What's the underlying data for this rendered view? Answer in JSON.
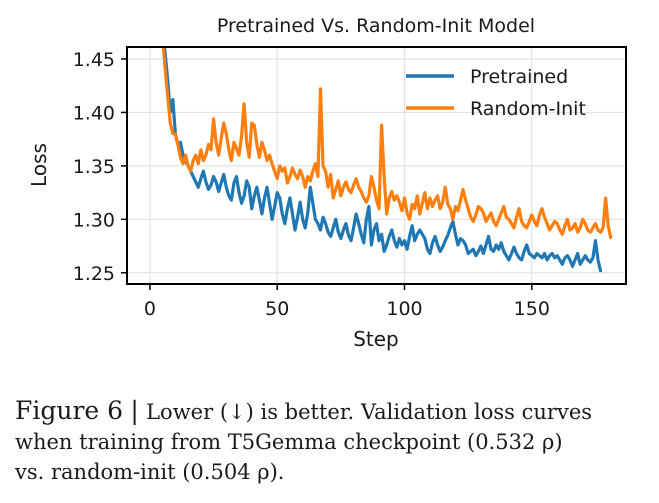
{
  "chart_data": {
    "type": "line",
    "title": "Pretrained Vs. Random-Init Model",
    "xlabel": "Step",
    "ylabel": "Loss",
    "xlim": [
      -9,
      187
    ],
    "ylim": [
      1.2395,
      1.4612
    ],
    "xticks": [
      0,
      50,
      100,
      150
    ],
    "xtick_labels": [
      "0",
      "50",
      "100",
      "150"
    ],
    "yticks": [
      1.25,
      1.3,
      1.35,
      1.4,
      1.45
    ],
    "ytick_labels": [
      "1.25",
      "1.30",
      "1.35",
      "1.40",
      "1.45"
    ],
    "grid": true,
    "legend_position": "top-right",
    "x_start": 5,
    "series": [
      {
        "name": "Pretrained",
        "color": "#1f77b4",
        "values": [
          1.475,
          1.455,
          1.43,
          1.4,
          1.412,
          1.38,
          1.37,
          1.372,
          1.36,
          1.355,
          1.35,
          1.345,
          1.34,
          1.335,
          1.33,
          1.338,
          1.345,
          1.335,
          1.328,
          1.332,
          1.34,
          1.335,
          1.326,
          1.334,
          1.342,
          1.33,
          1.322,
          1.318,
          1.334,
          1.34,
          1.325,
          1.315,
          1.322,
          1.336,
          1.33,
          1.31,
          1.322,
          1.33,
          1.318,
          1.305,
          1.32,
          1.33,
          1.315,
          1.3,
          1.312,
          1.325,
          1.32,
          1.305,
          1.296,
          1.31,
          1.32,
          1.305,
          1.29,
          1.302,
          1.316,
          1.3,
          1.292,
          1.306,
          1.33,
          1.315,
          1.3,
          1.296,
          1.29,
          1.302,
          1.296,
          1.288,
          1.284,
          1.292,
          1.3,
          1.288,
          1.282,
          1.29,
          1.296,
          1.285,
          1.28,
          1.292,
          1.305,
          1.296,
          1.286,
          1.278,
          1.3,
          1.312,
          1.276,
          1.29,
          1.296,
          1.28,
          1.286,
          1.27,
          1.276,
          1.284,
          1.29,
          1.28,
          1.274,
          1.282,
          1.276,
          1.28,
          1.272,
          1.284,
          1.294,
          1.28,
          1.286,
          1.29,
          1.286,
          1.282,
          1.272,
          1.268,
          1.278,
          1.284,
          1.276,
          1.27,
          1.274,
          1.28,
          1.285,
          1.292,
          1.298,
          1.286,
          1.276,
          1.282,
          1.28,
          1.276,
          1.268,
          1.27,
          1.272,
          1.266,
          1.27,
          1.275,
          1.268,
          1.276,
          1.284,
          1.272,
          1.27,
          1.276,
          1.272,
          1.278,
          1.27,
          1.266,
          1.262,
          1.268,
          1.274,
          1.268,
          1.264,
          1.262,
          1.27,
          1.276,
          1.268,
          1.266,
          1.264,
          1.268,
          1.266,
          1.264,
          1.268,
          1.262,
          1.266,
          1.268,
          1.264,
          1.266,
          1.262,
          1.258,
          1.264,
          1.266,
          1.262,
          1.256,
          1.262,
          1.268,
          1.258,
          1.262,
          1.266,
          1.262,
          1.26,
          1.264,
          1.28,
          1.262,
          1.252
        ]
      },
      {
        "name": "Random-Init",
        "color": "#ff7f0e",
        "values": [
          1.47,
          1.44,
          1.415,
          1.39,
          1.38,
          1.38,
          1.37,
          1.358,
          1.352,
          1.36,
          1.35,
          1.345,
          1.355,
          1.36,
          1.352,
          1.365,
          1.355,
          1.36,
          1.37,
          1.365,
          1.394,
          1.372,
          1.36,
          1.376,
          1.39,
          1.38,
          1.365,
          1.355,
          1.372,
          1.366,
          1.36,
          1.378,
          1.408,
          1.372,
          1.358,
          1.39,
          1.388,
          1.37,
          1.358,
          1.372,
          1.365,
          1.355,
          1.36,
          1.352,
          1.345,
          1.338,
          1.35,
          1.345,
          1.348,
          1.334,
          1.34,
          1.348,
          1.342,
          1.338,
          1.346,
          1.34,
          1.33,
          1.34,
          1.336,
          1.345,
          1.352,
          1.34,
          1.422,
          1.35,
          1.345,
          1.33,
          1.342,
          1.32,
          1.328,
          1.336,
          1.322,
          1.33,
          1.335,
          1.328,
          1.325,
          1.332,
          1.338,
          1.33,
          1.326,
          1.32,
          1.316,
          1.322,
          1.34,
          1.33,
          1.318,
          1.31,
          1.388,
          1.34,
          1.305,
          1.32,
          1.326,
          1.318,
          1.322,
          1.316,
          1.308,
          1.32,
          1.306,
          1.3,
          1.314,
          1.31,
          1.322,
          1.305,
          1.315,
          1.325,
          1.31,
          1.32,
          1.312,
          1.318,
          1.322,
          1.31,
          1.316,
          1.33,
          1.314,
          1.31,
          1.3,
          1.312,
          1.308,
          1.318,
          1.328,
          1.318,
          1.31,
          1.302,
          1.298,
          1.304,
          1.312,
          1.31,
          1.306,
          1.298,
          1.302,
          1.306,
          1.298,
          1.294,
          1.3,
          1.306,
          1.312,
          1.302,
          1.3,
          1.296,
          1.292,
          1.302,
          1.31,
          1.298,
          1.294,
          1.292,
          1.298,
          1.304,
          1.298,
          1.294,
          1.304,
          1.31,
          1.302,
          1.296,
          1.29,
          1.294,
          1.298,
          1.296,
          1.29,
          1.286,
          1.294,
          1.3,
          1.29,
          1.292,
          1.296,
          1.288,
          1.292,
          1.3,
          1.296,
          1.29,
          1.288,
          1.292,
          1.296,
          1.29,
          1.288,
          1.292,
          1.32,
          1.294,
          1.283
        ]
      }
    ]
  },
  "caption": {
    "figure_label": "Figure 6",
    "separator": "|",
    "text_line1": "Lower (↓) is better. Validation loss curves",
    "text_line2": "when training from T5Gemma checkpoint (0.532 ρ)",
    "text_line3": "vs. random-init (0.504 ρ)."
  }
}
